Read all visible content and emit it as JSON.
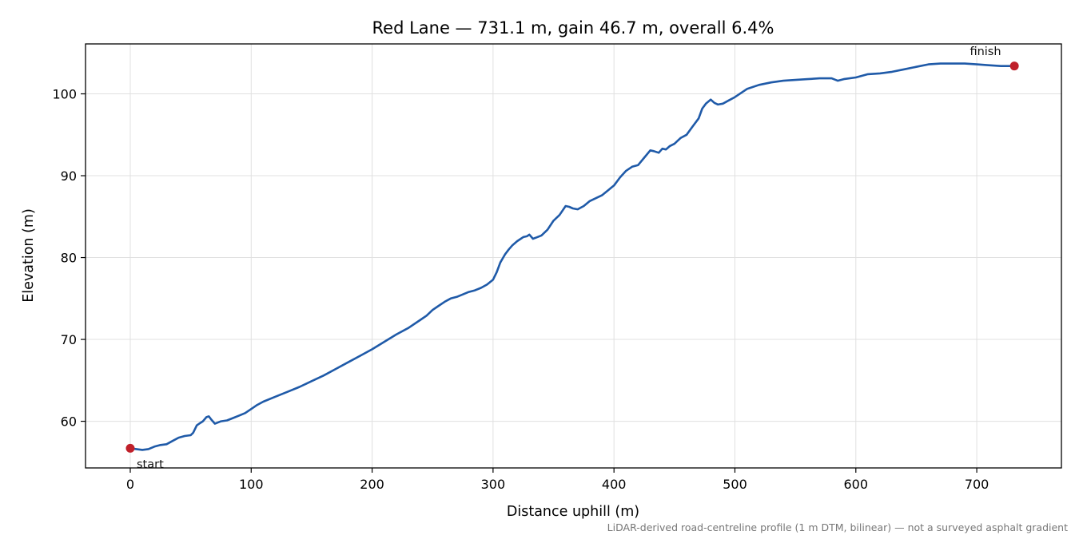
{
  "chart_data": {
    "type": "line",
    "title": "Red Lane — 731.1 m, gain 46.7 m, overall 6.4%",
    "xlabel": "Distance uphill (m)",
    "ylabel": "Elevation (m)",
    "xlim": [
      -37,
      770
    ],
    "ylim": [
      54.3,
      106.1
    ],
    "xticks": [
      0,
      100,
      200,
      300,
      400,
      500,
      600,
      700
    ],
    "yticks": [
      60,
      70,
      80,
      90,
      100
    ],
    "grid": true,
    "line_color": "#1f5aa8",
    "marker_color": "#c0202a",
    "footnote": "LiDAR-derived road-centreline profile (1 m DTM, bilinear) — not a surveyed asphalt gradient",
    "annotations": [
      {
        "text": "start",
        "x": 0,
        "y": 56.7
      },
      {
        "text": "finish",
        "x": 731.1,
        "y": 103.4
      }
    ],
    "series": [
      {
        "x": [
          0,
          5,
          10,
          15,
          20,
          25,
          30,
          35,
          40,
          45,
          50,
          52,
          55,
          58,
          60,
          63,
          65,
          67,
          70,
          75,
          80,
          85,
          90,
          95,
          100,
          105,
          110,
          120,
          130,
          140,
          150,
          160,
          170,
          180,
          190,
          200,
          210,
          220,
          230,
          240,
          245,
          250,
          255,
          260,
          265,
          270,
          275,
          280,
          285,
          290,
          295,
          300,
          303,
          306,
          310,
          313,
          316,
          320,
          325,
          328,
          330,
          333,
          335,
          340,
          345,
          350,
          355,
          360,
          363,
          366,
          370,
          375,
          380,
          390,
          400,
          405,
          410,
          413,
          415,
          420,
          425,
          430,
          433,
          437,
          440,
          443,
          446,
          450,
          455,
          460,
          465,
          470,
          473,
          476,
          480,
          483,
          486,
          490,
          495,
          500,
          510,
          520,
          530,
          540,
          550,
          560,
          570,
          580,
          585,
          590,
          600,
          610,
          620,
          630,
          640,
          650,
          660,
          670,
          680,
          690,
          700,
          710,
          720,
          731.1
        ],
        "y": [
          56.7,
          56.6,
          56.5,
          56.6,
          56.9,
          57.1,
          57.2,
          57.6,
          58.0,
          58.2,
          58.3,
          58.6,
          59.5,
          59.8,
          60.0,
          60.5,
          60.6,
          60.2,
          59.7,
          60.0,
          60.1,
          60.4,
          60.7,
          61.0,
          61.5,
          62.0,
          62.4,
          63.0,
          63.6,
          64.2,
          64.9,
          65.6,
          66.4,
          67.2,
          68.0,
          68.8,
          69.7,
          70.6,
          71.4,
          72.4,
          72.9,
          73.6,
          74.1,
          74.6,
          75.0,
          75.2,
          75.5,
          75.8,
          76.0,
          76.3,
          76.7,
          77.3,
          78.2,
          79.4,
          80.4,
          81.0,
          81.5,
          82.0,
          82.5,
          82.6,
          82.8,
          82.3,
          82.4,
          82.7,
          83.4,
          84.5,
          85.2,
          86.3,
          86.2,
          86.0,
          85.9,
          86.3,
          86.9,
          87.6,
          88.8,
          89.8,
          90.6,
          90.9,
          91.1,
          91.3,
          92.2,
          93.1,
          93.0,
          92.8,
          93.3,
          93.2,
          93.6,
          93.9,
          94.6,
          95.0,
          96.0,
          97.0,
          98.2,
          98.8,
          99.3,
          98.9,
          98.7,
          98.8,
          99.2,
          99.6,
          100.6,
          101.1,
          101.4,
          101.6,
          101.7,
          101.8,
          101.9,
          101.9,
          101.6,
          101.8,
          102.0,
          102.4,
          102.5,
          102.7,
          103.0,
          103.3,
          103.6,
          103.7,
          103.7,
          103.7,
          103.6,
          103.5,
          103.4,
          103.4
        ]
      }
    ]
  }
}
